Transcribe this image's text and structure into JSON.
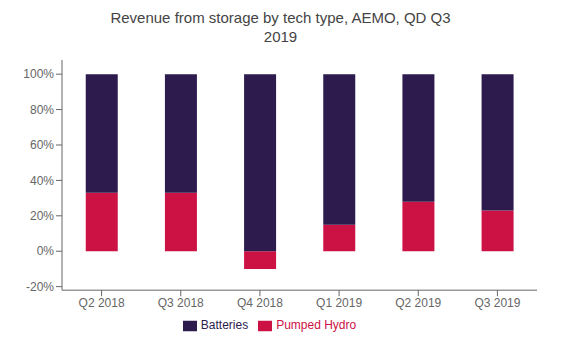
{
  "chart_data": {
    "type": "bar",
    "title": "Revenue from storage by tech type, AEMO, QD Q3\n2019",
    "categories": [
      "Q2 2018",
      "Q3 2018",
      "Q4 2018",
      "Q1 2019",
      "Q2 2019",
      "Q3 2019"
    ],
    "series": [
      {
        "name": "Pumped Hydro",
        "color": "#cc1144",
        "values": [
          0.33,
          0.33,
          -0.1,
          0.15,
          0.28,
          0.23
        ]
      },
      {
        "name": "Batteries",
        "color": "#2d1b4e",
        "values": [
          0.67,
          0.67,
          1.0,
          0.85,
          0.72,
          0.77
        ]
      }
    ],
    "stacked": true,
    "ylim": [
      -0.22,
      1.08
    ],
    "yticks": [
      {
        "value": -0.2,
        "label": "-20%"
      },
      {
        "value": 0.0,
        "label": "0%"
      },
      {
        "value": 0.2,
        "label": "20%"
      },
      {
        "value": 0.4,
        "label": "40%"
      },
      {
        "value": 0.6,
        "label": "60%"
      },
      {
        "value": 0.8,
        "label": "80%"
      },
      {
        "value": 1.0,
        "label": "100%"
      }
    ],
    "grid": false,
    "legend": "bottom"
  }
}
